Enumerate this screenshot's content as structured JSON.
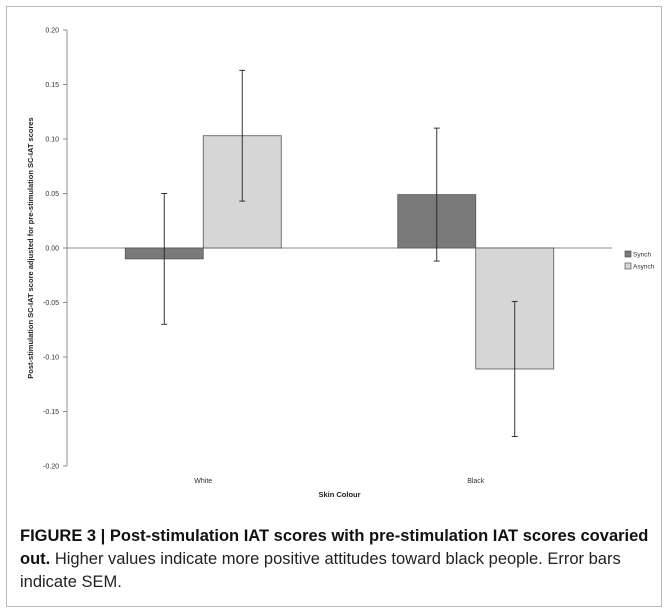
{
  "chart_data": {
    "type": "bar",
    "categories": [
      "White",
      "Black"
    ],
    "series": [
      {
        "name": "Synch",
        "values": [
          -0.01,
          0.049
        ],
        "errors": [
          0.06,
          0.061
        ],
        "color": "#7a7a7a"
      },
      {
        "name": "Asynch",
        "values": [
          0.103,
          -0.111
        ],
        "errors": [
          0.06,
          0.062
        ],
        "color": "#d6d6d6"
      }
    ],
    "ylim": [
      -0.2,
      0.2
    ],
    "yticks": [
      "0.20",
      "0.15",
      "0.10",
      "0.05",
      "0.00",
      "-0.05",
      "-0.10",
      "-0.15",
      "-0.20"
    ],
    "ytick_values": [
      0.2,
      0.15,
      0.1,
      0.05,
      0,
      -0.05,
      -0.1,
      -0.15,
      -0.2
    ],
    "xlabel": "Skin Colour",
    "ylabel": "Post-stimulation SC-IAT score adjusted for pre-stimulation SC-IAT scores",
    "grid": false,
    "legend_position": "right"
  },
  "caption": {
    "label": "FIGURE 3 | Post-stimulation IAT scores with pre-stimulation IAT scores covaried out.",
    "text": " Higher values indicate more positive attitudes toward black people. Error bars indicate SEM."
  }
}
